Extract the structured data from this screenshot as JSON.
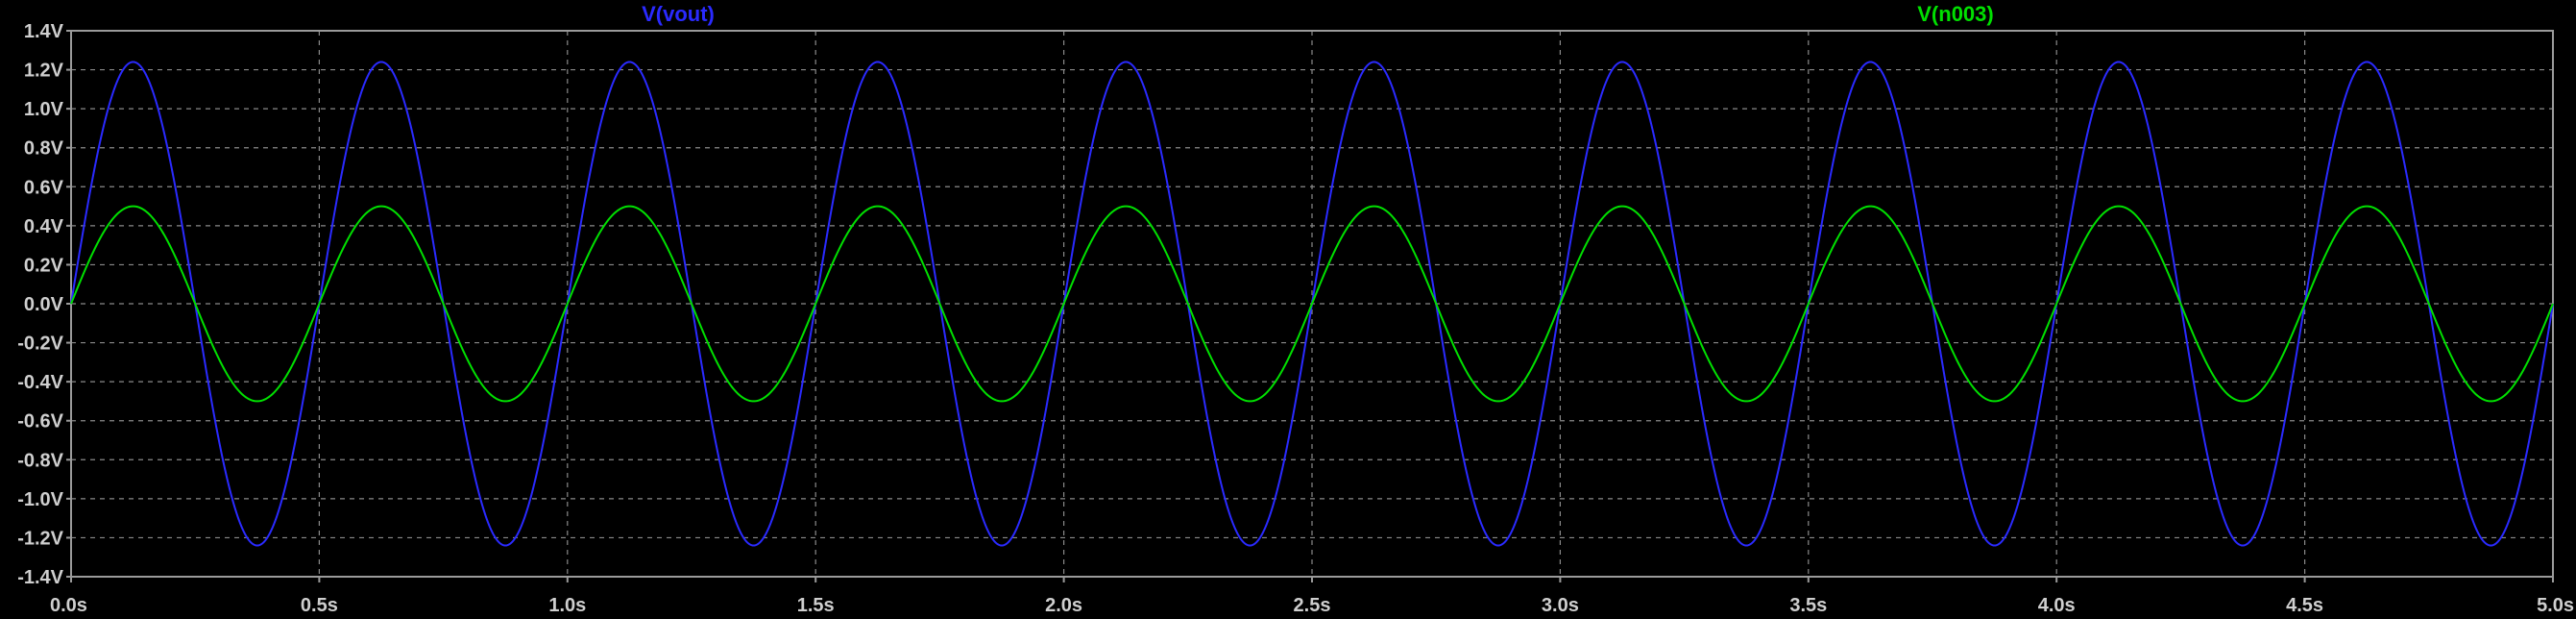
{
  "chart_data": {
    "type": "line",
    "title": "",
    "xlabel": "",
    "ylabel": "",
    "xlim": [
      0,
      5
    ],
    "ylim": [
      -1.4,
      1.4
    ],
    "x_ticks": [
      "0.0s",
      "0.5s",
      "1.0s",
      "1.5s",
      "2.0s",
      "2.5s",
      "3.0s",
      "3.5s",
      "4.0s",
      "4.5s",
      "5.0s"
    ],
    "y_ticks": [
      "1.4V",
      "1.2V",
      "1.0V",
      "0.8V",
      "0.6V",
      "0.4V",
      "0.2V",
      "0.0V",
      "-0.2V",
      "-0.4V",
      "-0.6V",
      "-0.8V",
      "-1.0V",
      "-1.2V",
      "-1.4V"
    ],
    "grid": true,
    "background_color": "#000000",
    "grid_color": "#8a8a8a",
    "axis_color": "#9a9a9a",
    "series": [
      {
        "name": "V(vout)",
        "color": "#2a2aff",
        "waveform": "sine",
        "amplitude": 1.24,
        "frequency_hz": 2,
        "phase_deg": 0,
        "offset": 0
      },
      {
        "name": "V(n003)",
        "color": "#00e000",
        "waveform": "sine",
        "amplitude": 0.5,
        "frequency_hz": 2,
        "phase_deg": 0,
        "offset": 0
      }
    ]
  }
}
